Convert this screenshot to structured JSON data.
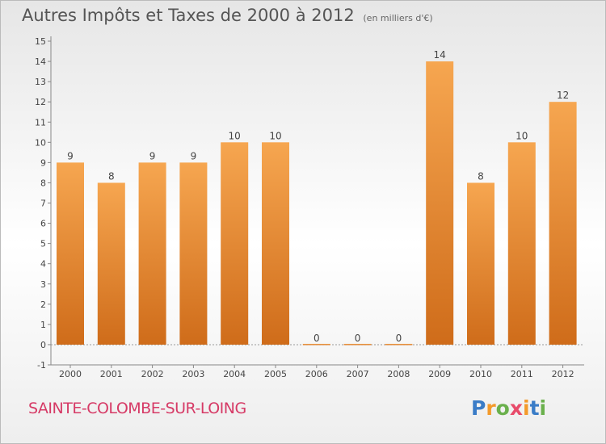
{
  "header": {
    "title": "Autres Impôts et Taxes de 2000 à 2012",
    "unit": "(en milliers d'€)"
  },
  "footer": {
    "commune": "SAINTE-COLOMBE-SUR-LOING",
    "logo_letters": [
      "P",
      "r",
      "o",
      "x",
      "i",
      "t",
      "i"
    ],
    "logo_colors": [
      "#3a7cc7",
      "#f39a2b",
      "#6ab04c",
      "#e84b6a",
      "#f39a2b",
      "#3a7cc7",
      "#6ab04c"
    ]
  },
  "colors": {
    "bar_top": "#f6a650",
    "bar_bottom": "#cf6c1a",
    "text": "#444444",
    "grid": "#cccccc"
  },
  "chart_data": {
    "type": "bar",
    "title": "Autres Impôts et Taxes de 2000 à 2012",
    "subtitle": "(en milliers d'€)",
    "categories": [
      "2000",
      "2001",
      "2002",
      "2003",
      "2004",
      "2005",
      "2006",
      "2007",
      "2008",
      "2009",
      "2010",
      "2011",
      "2012"
    ],
    "values": [
      9,
      8,
      9,
      9,
      10,
      10,
      0,
      0,
      0,
      14,
      8,
      10,
      12
    ],
    "data_labels": [
      "9",
      "8",
      "9",
      "9",
      "10",
      "10",
      "0",
      "0",
      "0",
      "14",
      "8",
      "10",
      "12"
    ],
    "yticks": [
      "-1",
      "0",
      "1",
      "2",
      "3",
      "4",
      "5",
      "6",
      "7",
      "8",
      "9",
      "10",
      "11",
      "12",
      "13",
      "14",
      "15"
    ],
    "ylim": [
      -1,
      15
    ],
    "grid": false,
    "xlabel": "",
    "ylabel": ""
  }
}
